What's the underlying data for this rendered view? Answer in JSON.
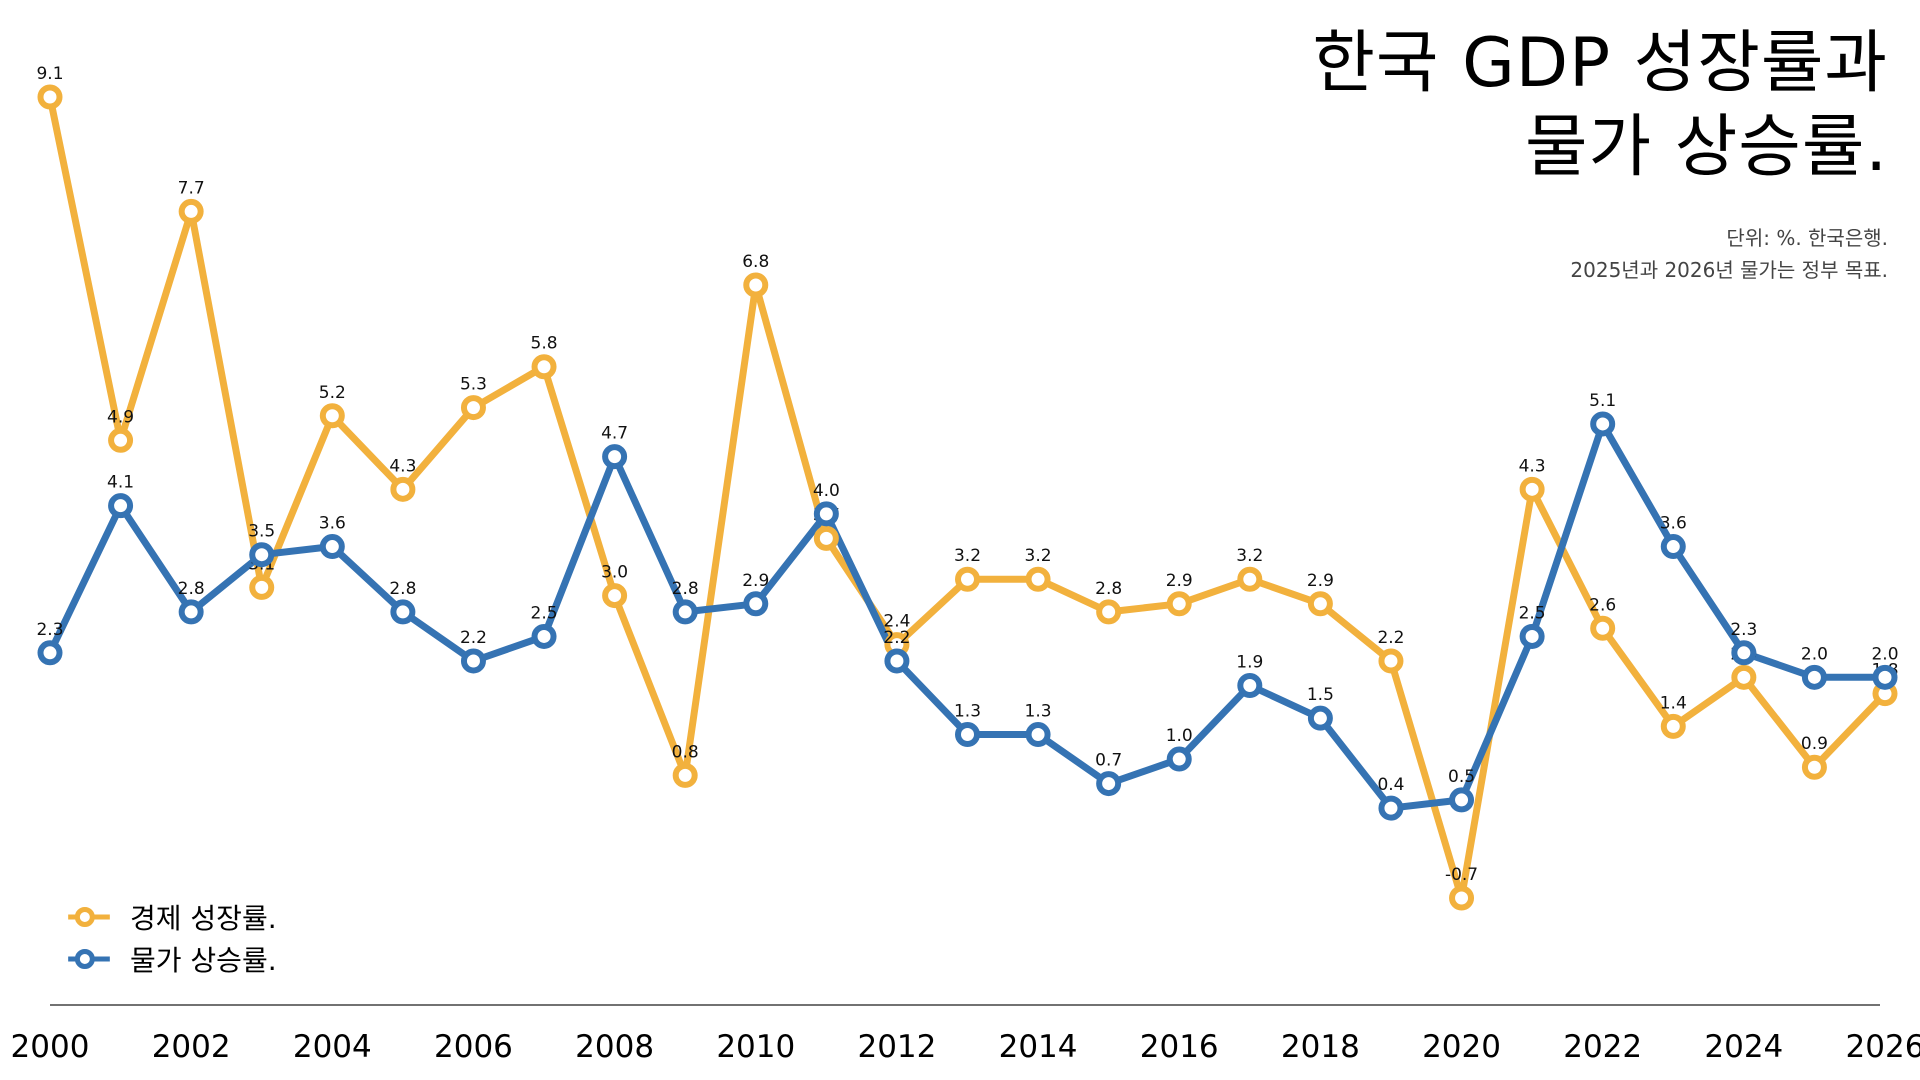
{
  "title_lines": [
    "한국 GDP 성장률과",
    "물가 상승률."
  ],
  "subtitle_lines": [
    "단위: %. 한국은행.",
    "2025년과 2026년 물가는 정부 목표."
  ],
  "colors": {
    "growth": "#F2B13D",
    "inflation": "#3573B3",
    "axis": "#444444"
  },
  "chart_data": {
    "type": "line",
    "x": [
      2000,
      2001,
      2002,
      2003,
      2004,
      2005,
      2006,
      2007,
      2008,
      2009,
      2010,
      2011,
      2012,
      2013,
      2014,
      2015,
      2016,
      2017,
      2018,
      2019,
      2020,
      2021,
      2022,
      2023,
      2024,
      2025,
      2026
    ],
    "x_tick_labels": [
      "2000",
      "2002",
      "2004",
      "2006",
      "2008",
      "2010",
      "2012",
      "2014",
      "2016",
      "2018",
      "2020",
      "2022",
      "2024",
      "2026"
    ],
    "series": [
      {
        "name": "경제 성장률.",
        "values": [
          9.1,
          4.9,
          7.7,
          3.1,
          5.2,
          4.3,
          5.3,
          5.8,
          3.0,
          0.8,
          6.8,
          3.7,
          2.4,
          3.2,
          3.2,
          2.8,
          2.9,
          3.2,
          2.9,
          2.2,
          -0.7,
          4.3,
          2.6,
          1.4,
          2.0,
          0.9,
          1.8
        ]
      },
      {
        "name": "물가 상승률.",
        "values": [
          2.3,
          4.1,
          2.8,
          3.5,
          3.6,
          2.8,
          2.2,
          2.5,
          4.7,
          2.8,
          2.9,
          4.0,
          2.2,
          1.3,
          1.3,
          0.7,
          1.0,
          1.9,
          1.5,
          0.4,
          0.5,
          2.5,
          5.1,
          3.6,
          2.3,
          2.0,
          2.0
        ]
      }
    ],
    "xlim": [
      2000,
      2026
    ],
    "ylim": [
      -0.7,
      9.1
    ],
    "grid": false,
    "legend_position": "bottom-left"
  }
}
